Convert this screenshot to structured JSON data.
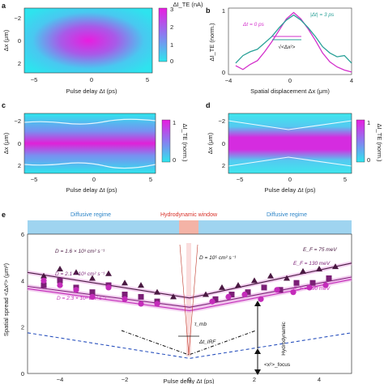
{
  "chart_data": [
    {
      "panel": "a",
      "type": "heatmap",
      "xlabel": "Pulse delay Δt (ps)",
      "ylabel": "Δx (μm)",
      "colorbar_label": "ΔI_TE (nA)",
      "xticks": [
        "−5",
        "0",
        "5"
      ],
      "yticks": [
        "−2",
        "0",
        "2"
      ],
      "xlim": [
        -6,
        6
      ],
      "ylim": [
        -3,
        3
      ],
      "cbar_ticks": [
        "3",
        "2",
        "1",
        "0"
      ],
      "cbar_range": [
        0,
        3
      ],
      "peak": {
        "dt": 0,
        "dx": 0
      }
    },
    {
      "panel": "b",
      "type": "line",
      "xlabel": "Spatial displacement Δx (μm)",
      "ylabel": "ΔI_TE (norm.)",
      "xticks": [
        "−4",
        "0",
        "4"
      ],
      "yticks": [
        "0",
        "1"
      ],
      "xlim": [
        -4.5,
        4
      ],
      "ylim": [
        0,
        1.05
      ],
      "annotations": [
        "√<Δx²>"
      ],
      "x": [
        -4,
        -3.5,
        -3,
        -2.5,
        -2,
        -1.5,
        -1,
        -0.5,
        0,
        0.5,
        1,
        1.5,
        2,
        2.5,
        3,
        3.5,
        4
      ],
      "series": [
        {
          "name": "Δt = 0 ps",
          "color": "#d32fcb",
          "values": [
            0.14,
            0.08,
            0.16,
            0.22,
            0.36,
            0.52,
            0.7,
            0.88,
            0.98,
            0.88,
            0.72,
            0.54,
            0.34,
            0.2,
            0.12,
            0.07,
            0.04
          ]
        },
        {
          "name": "|Δt| = 3 ps",
          "color": "#2aa198",
          "values": [
            0.18,
            0.3,
            0.36,
            0.4,
            0.5,
            0.6,
            0.74,
            0.86,
            0.94,
            0.86,
            0.74,
            0.6,
            0.44,
            0.34,
            0.28,
            0.3,
            0.18
          ]
        }
      ]
    },
    {
      "panel": "c",
      "type": "heatmap",
      "xlabel": "Pulse delay Δt (ps)",
      "ylabel": "Δx (μm)",
      "colorbar_label": "ΔI_TE (norm.)",
      "xticks": [
        "−5",
        "0",
        "5"
      ],
      "yticks": [
        "−2",
        "0",
        "2"
      ],
      "cbar_ticks": [
        "1",
        "0"
      ],
      "cbar_range": [
        0,
        1
      ],
      "xlim": [
        -6,
        6
      ],
      "ylim": [
        -3,
        3
      ]
    },
    {
      "panel": "d",
      "type": "heatmap",
      "xlabel": "Pulse delay Δt (ps)",
      "ylabel": "Δx (μm)",
      "colorbar_label": "ΔI_TE (norm.)",
      "xticks": [
        "−5",
        "0",
        "5"
      ],
      "yticks": [
        "−2",
        "0",
        "2"
      ],
      "cbar_ticks": [
        "1",
        "0"
      ],
      "cbar_range": [
        0,
        1
      ],
      "xlim": [
        -6,
        6
      ],
      "ylim": [
        -3,
        3
      ]
    },
    {
      "panel": "e",
      "type": "scatter",
      "xlabel": "Pulse delay Δt (ps)",
      "ylabel": "Spatial spread <Δx²> (μm²)",
      "xlim": [
        -5,
        5
      ],
      "ylim": [
        0,
        6
      ],
      "xticks": [
        "−4",
        "−2",
        "0",
        "2",
        "4"
      ],
      "yticks": [
        "0",
        "2",
        "4",
        "6"
      ],
      "regimes": [
        "Diffusive regime",
        "Hydrodynamic window",
        "Diffusive regime"
      ],
      "annotations": {
        "D1": "D = 1.6 × 10³ cm² s⁻¹",
        "D2": "D = 2.1 × 10³ cm² s⁻¹",
        "D3": "D = 2.3 × 10³ cm² s⁻¹",
        "D0": "D = 10⁵ cm² s⁻¹",
        "E1": "E_F = 75 meV",
        "E2": "E_F = 130 meV",
        "E3": "E_F = 190 meV",
        "tmb": "τ_mb",
        "tirf": "Δt_IRF",
        "hydro": "Hydrodynamic",
        "focus": "<x²>_focus"
      },
      "series": [
        {
          "name": "E_F = 75 meV",
          "marker": "triangle",
          "color": "#4a1942",
          "x": [
            -4.5,
            -4.0,
            -3.5,
            -3.0,
            -2.5,
            -2.0,
            -1.5,
            -1.0,
            -0.5,
            0.5,
            1.0,
            1.5,
            2.0,
            2.5,
            3.0,
            3.5,
            4.0,
            4.5
          ],
          "y": [
            4.2,
            4.5,
            4.35,
            4.1,
            4.3,
            3.9,
            3.8,
            3.5,
            3.3,
            3.4,
            3.7,
            3.8,
            4.0,
            4.2,
            4.1,
            4.4,
            4.5,
            4.6
          ]
        },
        {
          "name": "E_F = 130 meV",
          "marker": "square",
          "color": "#7b1f76",
          "x": [
            -4.5,
            -4.0,
            -3.5,
            -3.0,
            -2.5,
            -2.0,
            -1.5,
            -1.0,
            0.8,
            1.3,
            1.8,
            2.3,
            2.8,
            3.3,
            3.8,
            4.3
          ],
          "y": [
            3.8,
            4.0,
            3.7,
            3.5,
            3.8,
            3.4,
            3.3,
            3.1,
            3.2,
            3.4,
            3.5,
            3.7,
            3.6,
            3.9,
            3.9,
            4.1
          ]
        },
        {
          "name": "E_F = 190 meV",
          "marker": "circle",
          "color": "#c42cba",
          "x": [
            -4.5,
            -4.0,
            -3.5,
            -3.0,
            -2.5,
            -2.0,
            -1.5,
            -1.0,
            0.7,
            1.2,
            1.7,
            2.2,
            2.7,
            3.2,
            3.7,
            4.2
          ],
          "y": [
            4.0,
            3.8,
            3.6,
            3.3,
            3.7,
            3.2,
            3.0,
            3.0,
            3.1,
            3.3,
            3.4,
            3.2,
            3.6,
            3.5,
            3.7,
            3.8
          ]
        }
      ],
      "lines": [
        {
          "name": "fit 75 meV",
          "color": "#4a1942",
          "x": [
            -5,
            0,
            5
          ],
          "y": [
            4.35,
            3.25,
            4.75
          ]
        },
        {
          "name": "fit 130 meV",
          "color": "#7b1f76",
          "x": [
            -5,
            0,
            5
          ],
          "y": [
            3.75,
            2.85,
            4.15
          ]
        },
        {
          "name": "fit 190 meV",
          "color": "#c42cba",
          "x": [
            -5,
            0,
            5
          ],
          "y": [
            3.65,
            2.7,
            4.05
          ]
        },
        {
          "name": "baseline",
          "color": "#2a52be",
          "x": [
            -5,
            0,
            5
          ],
          "y": [
            1.75,
            0.65,
            1.75
          ]
        }
      ]
    }
  ],
  "labels": {
    "panels": [
      "a",
      "b",
      "c",
      "d",
      "e"
    ],
    "b_legend_left": "Δt = 0 ps",
    "b_legend_right": "|Δt| = 3 ps"
  },
  "colors": {
    "magenta": "#e020d8",
    "cyan": "#2ee6ee",
    "band": "#9fd4f0",
    "hydro_band": "#f4b3a6",
    "diffusive_text": "#2f86c8",
    "hydro_text": "#d8322a"
  }
}
